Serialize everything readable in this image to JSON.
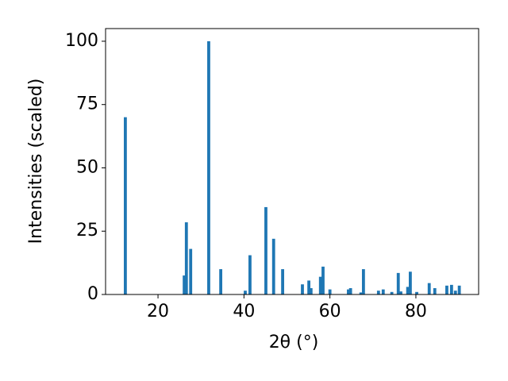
{
  "chart_data": {
    "type": "bar",
    "xlabel": "2θ (°)",
    "ylabel": "Intensities (scaled)",
    "x": [
      12.4,
      26.1,
      26.6,
      27.6,
      31.8,
      34.6,
      40.3,
      41.4,
      45.1,
      46.9,
      49.0,
      53.6,
      55.1,
      55.6,
      57.8,
      58.4,
      60.0,
      64.3,
      64.8,
      67.2,
      67.8,
      71.3,
      72.4,
      74.4,
      75.9,
      76.5,
      78.1,
      78.7,
      80.2,
      83.1,
      84.4,
      87.2,
      88.3,
      89.2,
      90.1
    ],
    "values": [
      70,
      7.5,
      28.5,
      18,
      100,
      10,
      1.5,
      15.5,
      34.5,
      22,
      10,
      4,
      5.5,
      2.5,
      7,
      11,
      2,
      2,
      2.5,
      0.8,
      10,
      1.5,
      2,
      1,
      8.5,
      1.2,
      3,
      9,
      1,
      4.5,
      2.5,
      3.5,
      3.8,
      1.5,
      3.5
    ],
    "color": "#1f77b4",
    "xlim": [
      7.8,
      94.6
    ],
    "xticks": [
      20,
      40,
      60,
      80
    ],
    "ylim": [
      0,
      105
    ],
    "yticks": [
      0,
      25,
      50,
      75,
      100
    ],
    "grid": false
  }
}
